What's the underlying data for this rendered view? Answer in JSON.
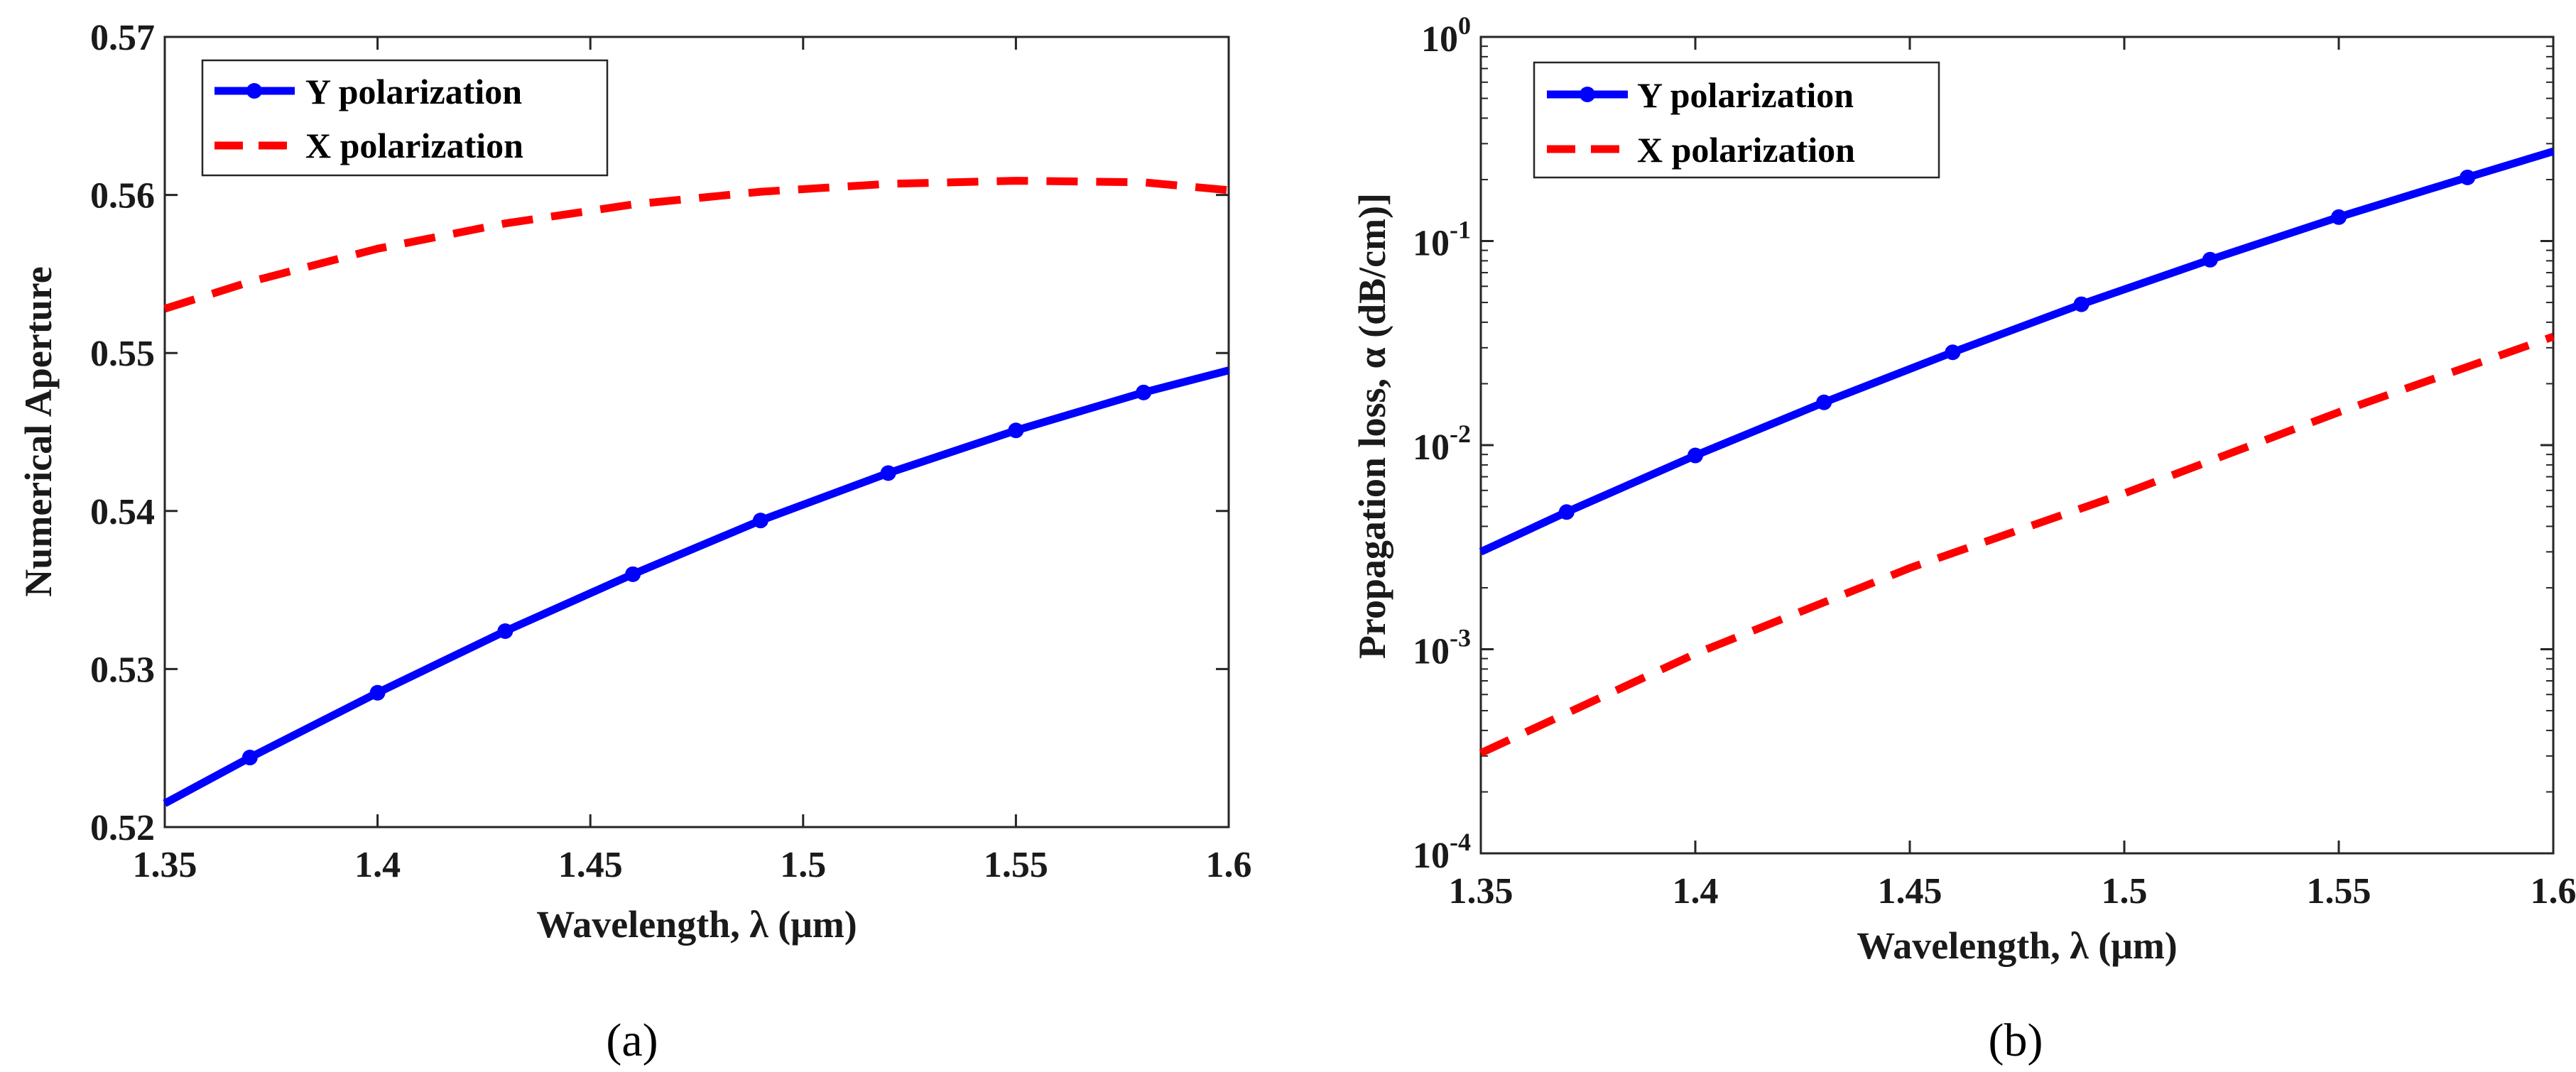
{
  "chart_data": [
    {
      "type": "line",
      "panel": "(a)",
      "xlabel": "Wavelength, λ (μm)",
      "ylabel": "Numerical Aperture",
      "xlim": [
        1.35,
        1.6
      ],
      "ylim": [
        0.52,
        0.57
      ],
      "xticks": [
        "1.35",
        "1.4",
        "1.45",
        "1.5",
        "1.55",
        "1.6"
      ],
      "xtick_values": [
        1.35,
        1.4,
        1.45,
        1.5,
        1.55,
        1.6
      ],
      "yticks": [
        "0.52",
        "0.53",
        "0.54",
        "0.55",
        "0.56",
        "0.57"
      ],
      "ytick_values": [
        0.52,
        0.53,
        0.54,
        0.55,
        0.56,
        0.57
      ],
      "legend_position": "top-left",
      "series": [
        {
          "name": "Y polarization",
          "color": "#0000ff",
          "style": "solid-markers",
          "x": [
            1.35,
            1.37,
            1.4,
            1.43,
            1.46,
            1.49,
            1.52,
            1.55,
            1.58,
            1.6
          ],
          "values": [
            0.5215,
            0.5244,
            0.5285,
            0.5324,
            0.536,
            0.5394,
            0.5424,
            0.5451,
            0.5475,
            0.5489
          ],
          "marker_x": [
            1.37,
            1.4,
            1.43,
            1.46,
            1.49,
            1.52,
            1.55,
            1.58
          ]
        },
        {
          "name": "X polarization",
          "color": "#ff0000",
          "style": "dashed",
          "x": [
            1.35,
            1.37,
            1.4,
            1.43,
            1.46,
            1.49,
            1.52,
            1.55,
            1.58,
            1.6
          ],
          "values": [
            0.5528,
            0.5545,
            0.5566,
            0.5582,
            0.5594,
            0.5602,
            0.5607,
            0.5609,
            0.5608,
            0.5603
          ]
        }
      ]
    },
    {
      "type": "line",
      "panel": "(b)",
      "xlabel": "Wavelength, λ (μm)",
      "ylabel": "Propagation loss, α (dB/cm)]",
      "yscale": "log",
      "xlim": [
        1.35,
        1.6
      ],
      "ylim": [
        0.0001,
        1
      ],
      "xticks": [
        "1.35",
        "1.4",
        "1.45",
        "1.5",
        "1.55",
        "1.6"
      ],
      "xtick_values": [
        1.35,
        1.4,
        1.45,
        1.5,
        1.55,
        1.6
      ],
      "yticks": [
        {
          "base": "10",
          "exp": "-4",
          "value": 0.0001
        },
        {
          "base": "10",
          "exp": "-3",
          "value": 0.001
        },
        {
          "base": "10",
          "exp": "-2",
          "value": 0.01
        },
        {
          "base": "10",
          "exp": "-1",
          "value": 0.1
        },
        {
          "base": "10",
          "exp": "0",
          "value": 1
        }
      ],
      "legend_position": "top-left",
      "series": [
        {
          "name": "Y polarization",
          "color": "#0000ff",
          "style": "solid-markers",
          "x": [
            1.35,
            1.37,
            1.4,
            1.43,
            1.46,
            1.49,
            1.52,
            1.55,
            1.58,
            1.6
          ],
          "values": [
            0.003,
            0.0047,
            0.0089,
            0.0162,
            0.0285,
            0.049,
            0.081,
            0.131,
            0.205,
            0.275
          ],
          "marker_x": [
            1.37,
            1.4,
            1.43,
            1.46,
            1.49,
            1.52,
            1.55,
            1.58
          ]
        },
        {
          "name": "X polarization",
          "color": "#ff0000",
          "style": "dashed",
          "x": [
            1.35,
            1.4,
            1.45,
            1.5,
            1.55,
            1.6
          ],
          "values": [
            0.00031,
            0.00095,
            0.0025,
            0.0058,
            0.0145,
            0.034
          ]
        }
      ]
    }
  ],
  "captions": [
    "(a)",
    "(b)"
  ]
}
